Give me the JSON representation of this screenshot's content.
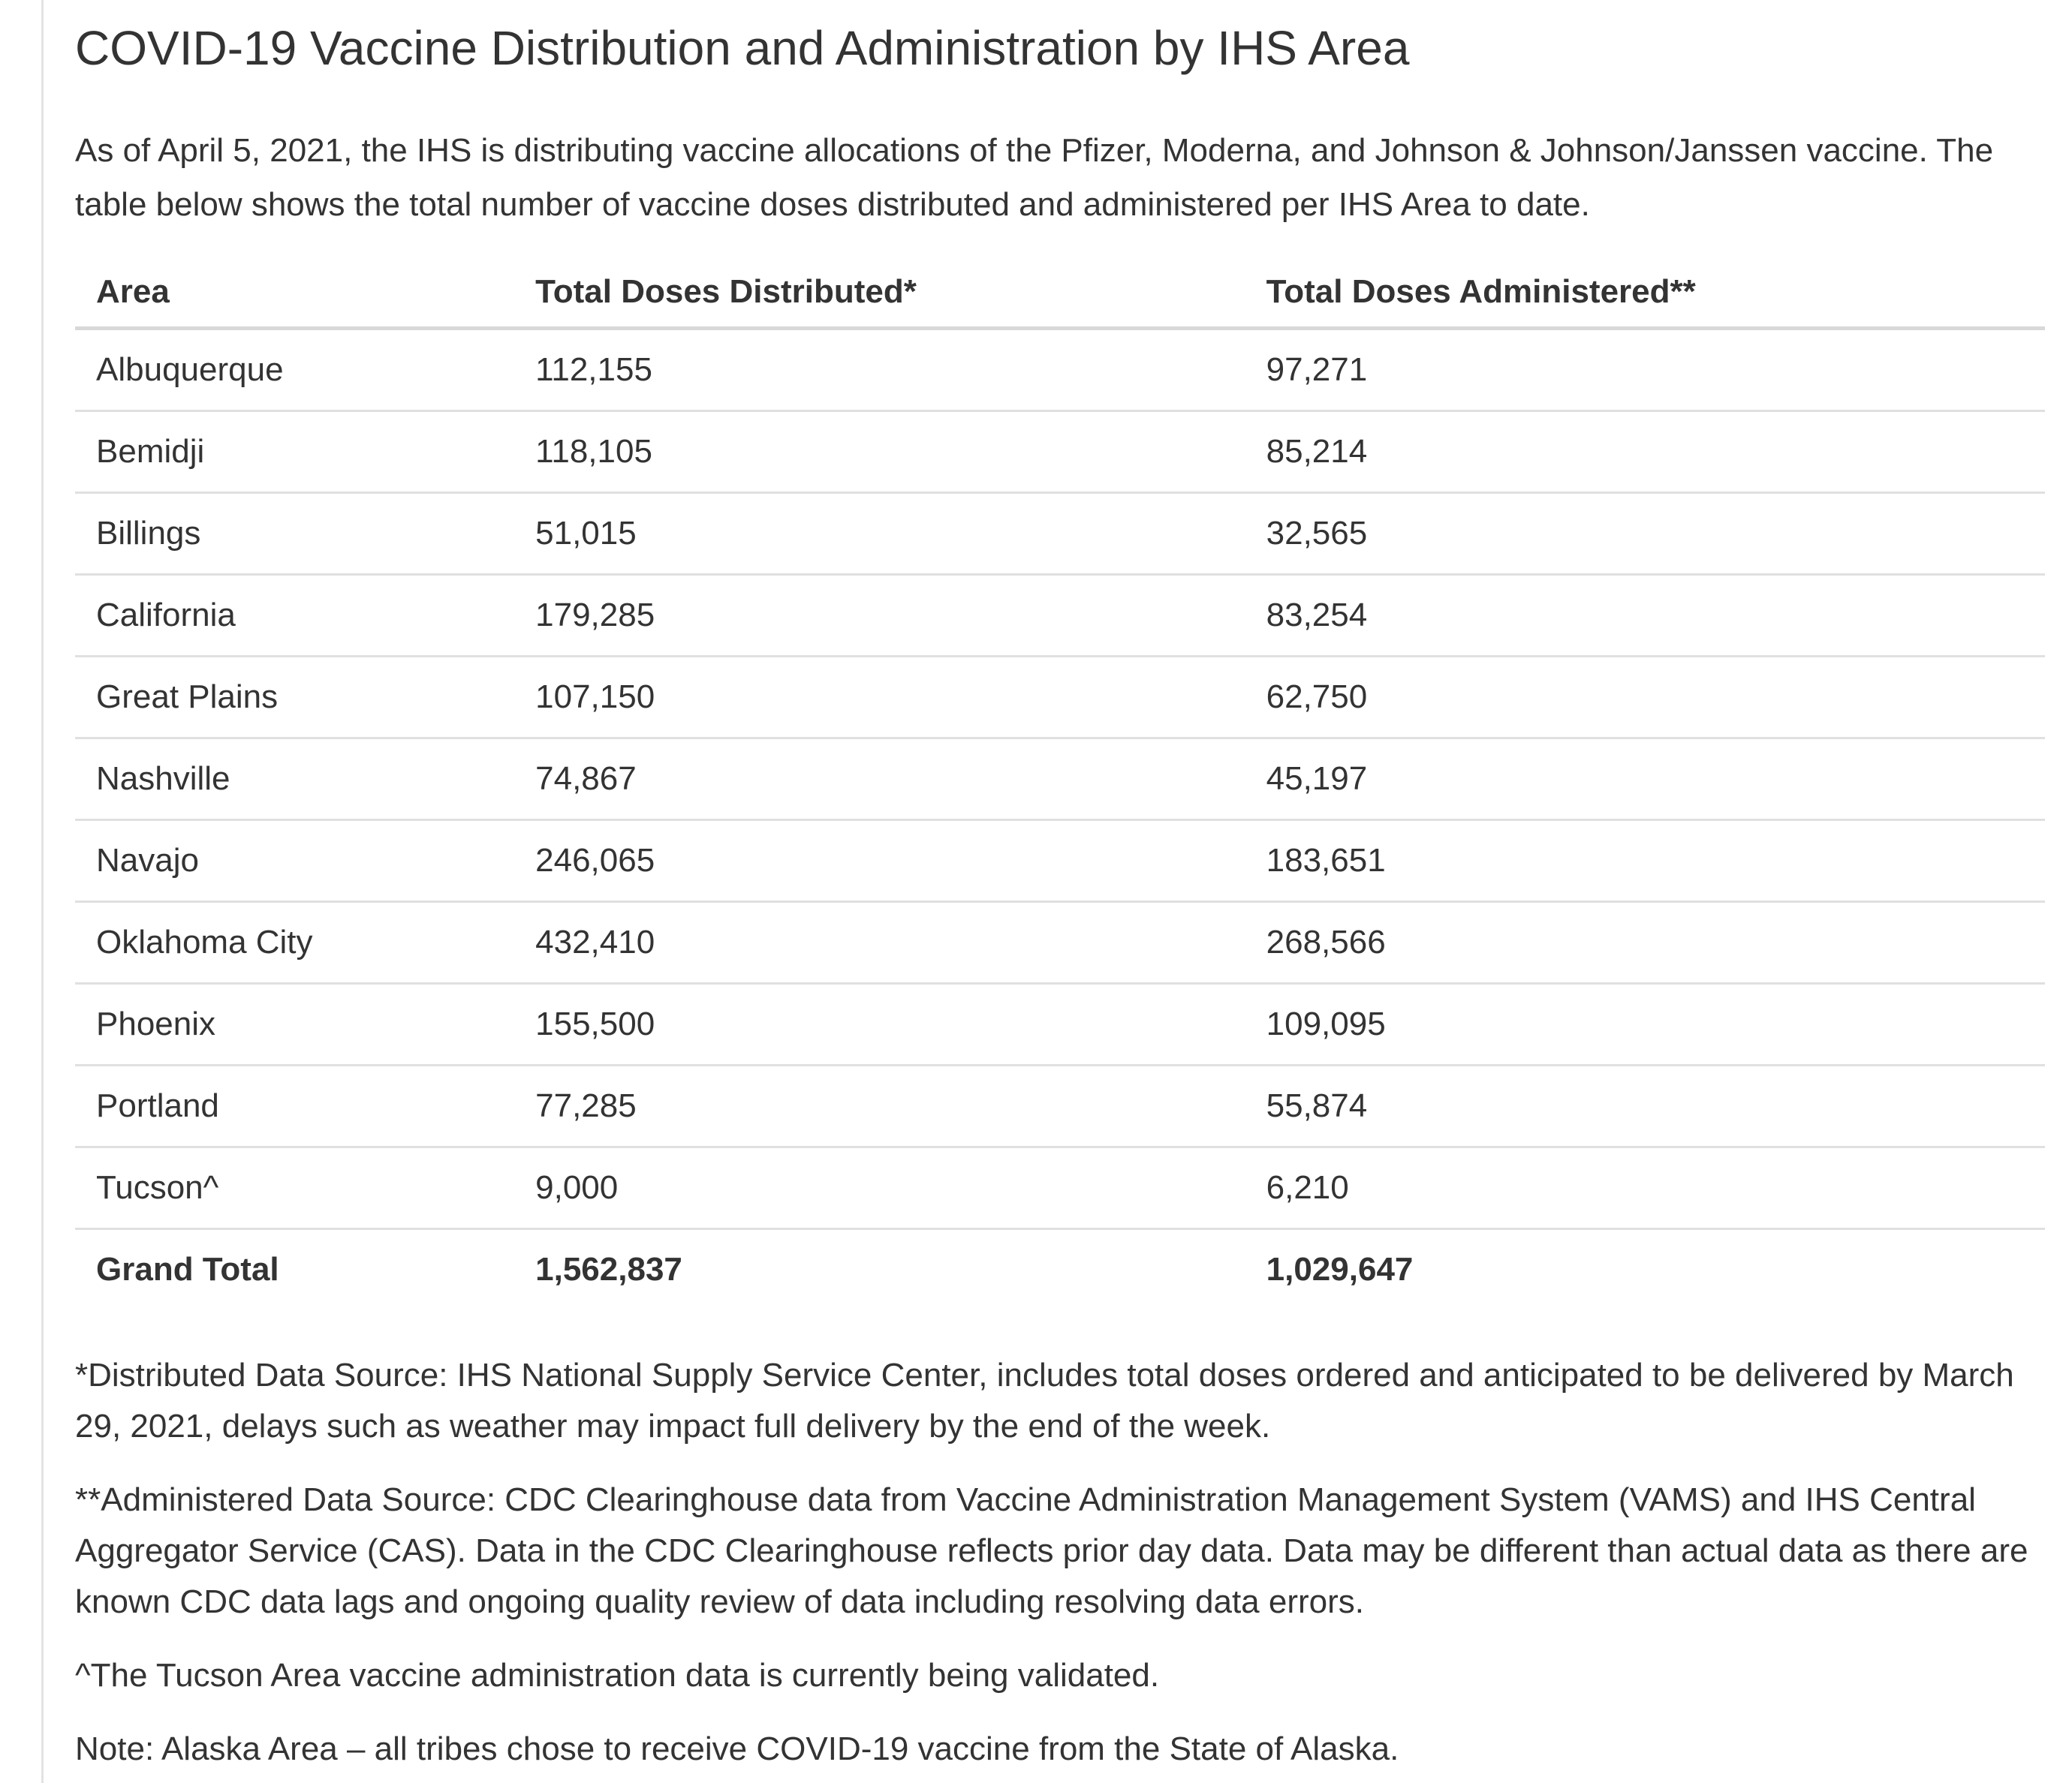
{
  "page": {
    "title": "COVID-19 Vaccine Distribution and Administration by IHS Area",
    "intro": "As of April 5, 2021, the IHS is distributing vaccine allocations of the Pfizer, Moderna, and Johnson & Johnson/Janssen vaccine. The table below shows the total number of vaccine doses distributed and administered per IHS Area to date."
  },
  "table": {
    "columns": [
      "Area",
      "Total Doses Distributed*",
      "Total Doses Administered**"
    ],
    "rows": [
      {
        "area": "Albuquerque",
        "distributed": "112,155",
        "administered": "97,271"
      },
      {
        "area": "Bemidji",
        "distributed": "118,105",
        "administered": "85,214"
      },
      {
        "area": "Billings",
        "distributed": "51,015",
        "administered": "32,565"
      },
      {
        "area": "California",
        "distributed": "179,285",
        "administered": "83,254"
      },
      {
        "area": "Great Plains",
        "distributed": "107,150",
        "administered": "62,750"
      },
      {
        "area": "Nashville",
        "distributed": "74,867",
        "administered": "45,197"
      },
      {
        "area": "Navajo",
        "distributed": "246,065",
        "administered": "183,651"
      },
      {
        "area": "Oklahoma City",
        "distributed": "432,410",
        "administered": "268,566"
      },
      {
        "area": "Phoenix",
        "distributed": "155,500",
        "administered": "109,095"
      },
      {
        "area": "Portland",
        "distributed": "77,285",
        "administered": "55,874"
      },
      {
        "area": "Tucson^",
        "distributed": "9,000",
        "administered": "6,210"
      }
    ],
    "grand_total": {
      "area": "Grand Total",
      "distributed": "1,562,837",
      "administered": "1,029,647"
    }
  },
  "footnotes": [
    "*Distributed Data Source: IHS National Supply Service Center, includes total doses ordered and anticipated to be delivered by March 29, 2021, delays such as weather may impact full delivery by the end of the week.",
    "**Administered Data Source: CDC Clearinghouse data from Vaccine Administration Management System (VAMS) and IHS Central Aggregator Service (CAS). Data in the CDC Clearinghouse reflects prior day data. Data may be different than actual data as there are known CDC data lags and ongoing quality review of data including resolving data errors.",
    "^The Tucson Area vaccine administration data is currently being validated.",
    "Note: Alaska Area – all tribes chose to receive COVID-19 vaccine from the State of Alaska."
  ],
  "colors": {
    "text": "#333333",
    "row_border": "#e0e0e0",
    "header_border": "#d8d8d8",
    "page_edge_border": "#e3e3e3"
  }
}
